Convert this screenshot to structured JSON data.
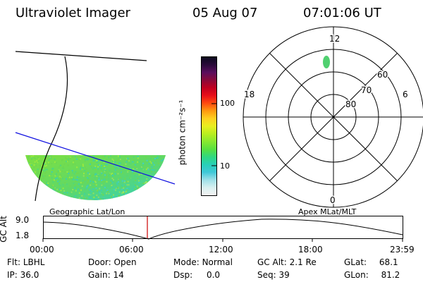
{
  "header": {
    "title": "Ultraviolet Imager",
    "date": "05 Aug 07",
    "time": "07:01:06 UT"
  },
  "colorbar": {
    "label": "photon cm⁻²s⁻¹",
    "ticks": [
      {
        "label": "100",
        "value": 100
      },
      {
        "label": "10",
        "value": 10
      }
    ],
    "colors": [
      "#0b0b1e",
      "#2a0a3a",
      "#5a0e5e",
      "#8a0a3a",
      "#c00020",
      "#e8101a",
      "#ff4a10",
      "#ff9a10",
      "#ffd020",
      "#e8ef20",
      "#b8ee20",
      "#88e830",
      "#58e040",
      "#30d880",
      "#28d0b8",
      "#40c8d8",
      "#9ee0e8",
      "#d8f0f0",
      "#f4f4f4"
    ]
  },
  "geo_label": "Geographic Lat/Lon",
  "apex_label": "Apex MLat/MLT",
  "polar": {
    "mlt_labels": {
      "top": "12",
      "bottom": "0",
      "left": "18",
      "right": "6"
    },
    "lat_labels": [
      "60",
      "70",
      "80"
    ]
  },
  "altitude_plot": {
    "axis_label": "GC Alt",
    "y_ticks": [
      "9.0",
      "1.8"
    ],
    "x_ticks": [
      "00:00",
      "06:00",
      "12:00",
      "18:00",
      "23:59"
    ],
    "current_time_marker": "07:01",
    "marker_color": "#cc0000"
  },
  "info": {
    "row1": [
      {
        "key": "Flt:",
        "value": "LBHL"
      },
      {
        "key": "Door:",
        "value": "Open"
      },
      {
        "key": "Mode:",
        "value": "Normal"
      },
      {
        "key": "GC Alt:",
        "value": "2.1 Re"
      },
      {
        "key": "GLat:",
        "value": "68.1"
      }
    ],
    "row2": [
      {
        "key": "IP:",
        "value": "36.0"
      },
      {
        "key": "Gain:",
        "value": "14"
      },
      {
        "key": "Dsp:",
        "value": "0.0"
      },
      {
        "key": "Seq:",
        "value": "39"
      },
      {
        "key": "GLon:",
        "value": "81.2"
      }
    ]
  }
}
